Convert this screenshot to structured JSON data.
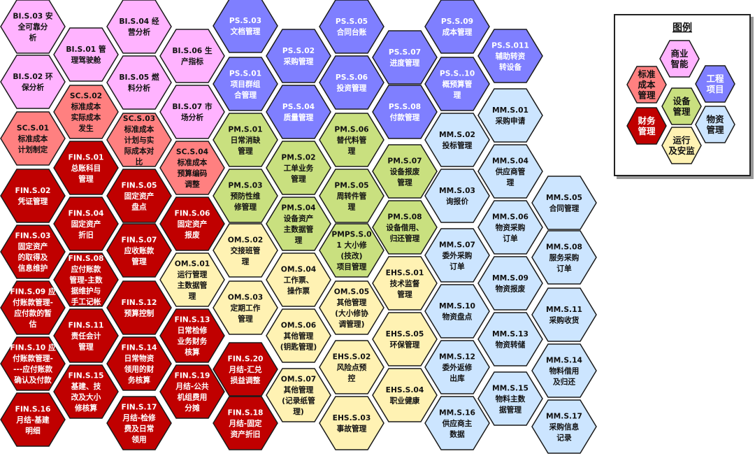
{
  "colors": {
    "bi": {
      "fill": "#ffb3ff",
      "text": "#111111"
    },
    "sc": {
      "fill": "#ff8080",
      "text": "#111111"
    },
    "fin": {
      "fill": "#c00000",
      "text": "#ffffff"
    },
    "ps": {
      "fill": "#7f7fff",
      "text": "#ffffff"
    },
    "pm": {
      "fill": "#c9e07f",
      "text": "#111111"
    },
    "om": {
      "fill": "#fff2b3",
      "text": "#111111"
    },
    "mm": {
      "fill": "#cce5ff",
      "text": "#111111"
    }
  },
  "hexes": [
    {
      "group": "bi",
      "lines": [
        "BI.S.03 安",
        "全可靠分",
        "析"
      ]
    },
    {
      "group": "bi",
      "lines": [
        "BI.S.02 环",
        "保分析"
      ]
    },
    {
      "group": "sc",
      "lines": [
        "SC.S.01",
        "标准成本",
        "计划制定"
      ]
    },
    {
      "group": "fin",
      "lines": [
        "FIN.S.02",
        "凭证管理"
      ]
    },
    {
      "group": "fin",
      "lines": [
        "FIN.S.03",
        "固定资产",
        "的取得及",
        "信息维护"
      ]
    },
    {
      "group": "fin",
      "lines": [
        "FIN.S.09 应",
        "付账款管理-",
        "应付款的暂",
        "估"
      ]
    },
    {
      "group": "fin",
      "lines": [
        "FIN.S.10 应",
        "付账款管理-",
        "---应付账款",
        "确认及付款"
      ]
    },
    {
      "group": "fin",
      "lines": [
        "FIN.S.16",
        "月结-基建",
        "明细"
      ]
    },
    {
      "group": "bi",
      "lines": [
        "BI.S.01 管",
        "理驾驶舱"
      ]
    },
    {
      "group": "sc",
      "lines": [
        "SC.S.02",
        "标准成本",
        "实际成本",
        "发生"
      ]
    },
    {
      "group": "fin",
      "lines": [
        "FIN.S.01",
        "总账科目",
        "管理"
      ]
    },
    {
      "group": "fin",
      "lines": [
        "FIN.S.04",
        "固定资产",
        "折旧"
      ]
    },
    {
      "group": "fin",
      "lines": [
        "FIN.S.08",
        "应付账款",
        "管理-主数",
        "据维护与",
        "手工记帐"
      ]
    },
    {
      "group": "fin",
      "lines": [
        "FIN.S.11",
        "责任会计",
        "管理"
      ]
    },
    {
      "group": "fin",
      "lines": [
        "FIN.S.15",
        "基建、技",
        "改及大小",
        "修核算"
      ]
    },
    {
      "group": "bi",
      "lines": [
        "BI.S.04 经",
        "营分析"
      ]
    },
    {
      "group": "bi",
      "lines": [
        "BI.S.05 燃",
        "料分析"
      ]
    },
    {
      "group": "sc",
      "lines": [
        "SC.S.03",
        "标准成本",
        "计划与实",
        "际成本对",
        "比"
      ]
    },
    {
      "group": "fin",
      "lines": [
        "FIN.S.05",
        "固定资产",
        "盘点"
      ]
    },
    {
      "group": "fin",
      "lines": [
        "FIN.S.07",
        "应收账款",
        "管理"
      ]
    },
    {
      "group": "fin",
      "lines": [
        "FIN.S.12",
        "预算控制"
      ]
    },
    {
      "group": "fin",
      "lines": [
        "FIN.S.14",
        "日常物资",
        "领用的财",
        "务核算"
      ]
    },
    {
      "group": "fin",
      "lines": [
        "FIN.S.17",
        "月结-检修",
        "费及日常",
        "领用"
      ]
    },
    {
      "group": "bi",
      "lines": [
        "BI.S.06 生",
        "产指标"
      ]
    },
    {
      "group": "bi",
      "lines": [
        "BI.S.07 市",
        "场分析"
      ]
    },
    {
      "group": "sc",
      "lines": [
        "SC.S.04",
        "标准成本",
        "预算编码",
        "调整"
      ]
    },
    {
      "group": "fin",
      "lines": [
        "FIN.S.06",
        "固定资产",
        "报废"
      ]
    },
    {
      "group": "om",
      "lines": [
        "OM.S.01",
        "运行管理",
        "主数据管",
        "理"
      ]
    },
    {
      "group": "fin",
      "lines": [
        "FIN.S.13",
        "日常检修",
        "业务财务",
        "核算"
      ]
    },
    {
      "group": "fin",
      "lines": [
        "FIN.S.19",
        "月结-公共",
        "机组费用",
        "分摊"
      ]
    },
    {
      "group": "ps",
      "lines": [
        "PS.S.03",
        "文档管理"
      ]
    },
    {
      "group": "ps",
      "lines": [
        "PS.S.01",
        "项目群组",
        "合管理"
      ]
    },
    {
      "group": "pm",
      "lines": [
        "PM.S.01",
        "日常消缺",
        "管理"
      ]
    },
    {
      "group": "pm",
      "lines": [
        "PM.S.03",
        "预防性维",
        "修管理"
      ]
    },
    {
      "group": "om",
      "lines": [
        "OM.S.02",
        "交接班管",
        "理"
      ]
    },
    {
      "group": "om",
      "lines": [
        "OM.S.03",
        "定期工作",
        "管理"
      ]
    },
    {
      "group": "fin",
      "lines": [
        "FIN.S.20",
        "月结-汇兑",
        "损益调整"
      ]
    },
    {
      "group": "fin",
      "lines": [
        "FIN.S.18",
        "月结-固定",
        "资产折旧"
      ]
    },
    {
      "group": "ps",
      "lines": [
        "PS.S.02",
        "采购管理"
      ]
    },
    {
      "group": "ps",
      "lines": [
        "PS.S.04",
        "质量管理"
      ]
    },
    {
      "group": "pm",
      "lines": [
        "PM.S.02",
        "工单业务",
        "管理"
      ]
    },
    {
      "group": "pm",
      "lines": [
        "PM.S.04",
        "设备资产",
        "主数据管",
        "理"
      ]
    },
    {
      "group": "om",
      "lines": [
        "OM.S.04",
        "工作票、",
        "操作票"
      ]
    },
    {
      "group": "om",
      "lines": [
        "OM.S.06",
        "其他管理",
        "(钥匙管理)"
      ]
    },
    {
      "group": "om",
      "lines": [
        "OM.S.07",
        "其他管理",
        "(记录纸管",
        "理)"
      ]
    },
    {
      "group": "ps",
      "lines": [
        "PS.S.05",
        "合同台账"
      ]
    },
    {
      "group": "ps",
      "lines": [
        "PS.S.06",
        "投资管理"
      ]
    },
    {
      "group": "pm",
      "lines": [
        "PM.S.06",
        "替代料管",
        "理"
      ]
    },
    {
      "group": "pm",
      "lines": [
        "PM.S.05",
        "周转件管",
        "理"
      ]
    },
    {
      "group": "pm",
      "lines": [
        "PMPS.S.0",
        "1 大小修",
        "(技改)",
        "项目管理"
      ]
    },
    {
      "group": "om",
      "lines": [
        "OM.S.05",
        "其他管理",
        "(大小修协",
        "调管理)"
      ]
    },
    {
      "group": "om",
      "lines": [
        "EHS.S.02",
        "风险点预",
        "控"
      ]
    },
    {
      "group": "om",
      "lines": [
        "EHS.S.03",
        "事故管理"
      ]
    },
    {
      "group": "ps",
      "lines": [
        "PS.S.07",
        "进度管理"
      ]
    },
    {
      "group": "ps",
      "lines": [
        "PS.S.08",
        "付款管理"
      ]
    },
    {
      "group": "pm",
      "lines": [
        "PM.S.07",
        "设备报废",
        "管理"
      ]
    },
    {
      "group": "pm",
      "lines": [
        "PM.S.08",
        "设备借用、",
        "归还管理"
      ]
    },
    {
      "group": "om",
      "lines": [
        "EHS.S.01",
        "技术监督",
        "管理"
      ]
    },
    {
      "group": "om",
      "lines": [
        "EHS.S.05",
        "环保管理"
      ]
    },
    {
      "group": "om",
      "lines": [
        "EHS.S.04",
        "职业健康"
      ]
    },
    {
      "group": "ps",
      "lines": [
        "PS.S.09",
        "成本管理"
      ]
    },
    {
      "group": "ps",
      "lines": [
        "PS.S..10",
        "概预算管",
        "理"
      ]
    },
    {
      "group": "mm",
      "lines": [
        "MM.S.02",
        "投标管理"
      ]
    },
    {
      "group": "mm",
      "lines": [
        "MM.S.03",
        "询报价"
      ]
    },
    {
      "group": "mm",
      "lines": [
        "MM.S.07",
        "委外采购",
        "订单"
      ]
    },
    {
      "group": "mm",
      "lines": [
        "MM.S.10",
        "物资盘点"
      ]
    },
    {
      "group": "mm",
      "lines": [
        "MM.S.12",
        "委外返修",
        "出库"
      ]
    },
    {
      "group": "mm",
      "lines": [
        "MM.S.16",
        "供应商主",
        "数据"
      ]
    },
    {
      "group": "ps",
      "lines": [
        "PS.S.011",
        "辅助转资",
        "转设备"
      ]
    },
    {
      "group": "mm",
      "lines": [
        "MM.S.01",
        "采购申请"
      ]
    },
    {
      "group": "mm",
      "lines": [
        "MM.S.04",
        "供应商管",
        "理"
      ]
    },
    {
      "group": "mm",
      "lines": [
        "MM.S.06",
        "物资采购",
        "订单"
      ]
    },
    {
      "group": "mm",
      "lines": [
        "MM.S.09",
        "物资报废"
      ]
    },
    {
      "group": "mm",
      "lines": [
        "MM.S.13",
        "物资转储"
      ]
    },
    {
      "group": "mm",
      "lines": [
        "MM.S.15",
        "物料主数",
        "据管理"
      ]
    },
    {
      "group": "mm",
      "lines": [
        "MM.S.05",
        "合同管理"
      ]
    },
    {
      "group": "mm",
      "lines": [
        "MM.S.08",
        "服务采购",
        "订单"
      ]
    },
    {
      "group": "mm",
      "lines": [
        "MM.S.11",
        "采购收货"
      ]
    },
    {
      "group": "mm",
      "lines": [
        "MM.S.14",
        "物料借用",
        "及归还"
      ]
    },
    {
      "group": "mm",
      "lines": [
        "MM.S.17",
        "采购信息",
        "记录"
      ]
    }
  ],
  "legend": {
    "title": "图例",
    "items": [
      {
        "group": "bi",
        "lines": [
          "商业",
          "智能"
        ]
      },
      {
        "group": "sc",
        "lines": [
          "标准",
          "成本",
          "管理"
        ]
      },
      {
        "group": "ps",
        "lines": [
          "工程",
          "项目"
        ]
      },
      {
        "group": "pm",
        "lines": [
          "设备",
          "管理"
        ]
      },
      {
        "group": "fin",
        "lines": [
          "财务",
          "管理"
        ]
      },
      {
        "group": "mm",
        "lines": [
          "物资",
          "管理"
        ]
      },
      {
        "group": "om",
        "lines": [
          "运行",
          "及安监"
        ]
      }
    ]
  }
}
